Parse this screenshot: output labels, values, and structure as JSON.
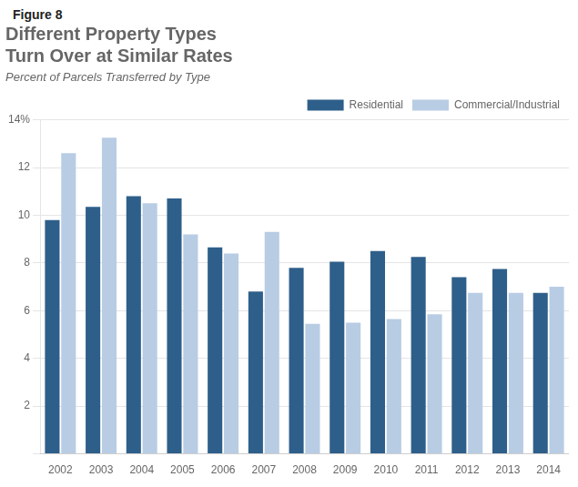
{
  "chart_data": {
    "type": "bar",
    "annotations": [
      "Figure 8"
    ],
    "title": [
      "Different Property Types",
      "Turn Over at Similar Rates"
    ],
    "subtitle": "Percent of Parcels Transferred by Type",
    "categories": [
      "2002",
      "2003",
      "2004",
      "2005",
      "2006",
      "2007",
      "2008",
      "2009",
      "2010",
      "2011",
      "2012",
      "2013",
      "2014"
    ],
    "series": [
      {
        "name": "Residential",
        "color": "#2E5F8A",
        "values": [
          9.8,
          10.35,
          10.8,
          10.7,
          8.65,
          6.8,
          7.8,
          8.05,
          8.5,
          8.25,
          7.4,
          7.75,
          6.75
        ]
      },
      {
        "name": "Commercial/Industrial",
        "color": "#B8CCE4",
        "values": [
          12.6,
          13.25,
          10.5,
          9.2,
          8.4,
          9.3,
          5.45,
          5.5,
          5.65,
          5.85,
          6.75,
          6.75,
          7.0
        ]
      }
    ],
    "ylim": [
      0,
      14
    ],
    "yticks": [
      {
        "value": 0,
        "label": ""
      },
      2,
      4,
      6,
      8,
      10,
      12,
      {
        "value": 14,
        "label": "14%"
      }
    ],
    "grid": true,
    "legend": "upper right"
  }
}
